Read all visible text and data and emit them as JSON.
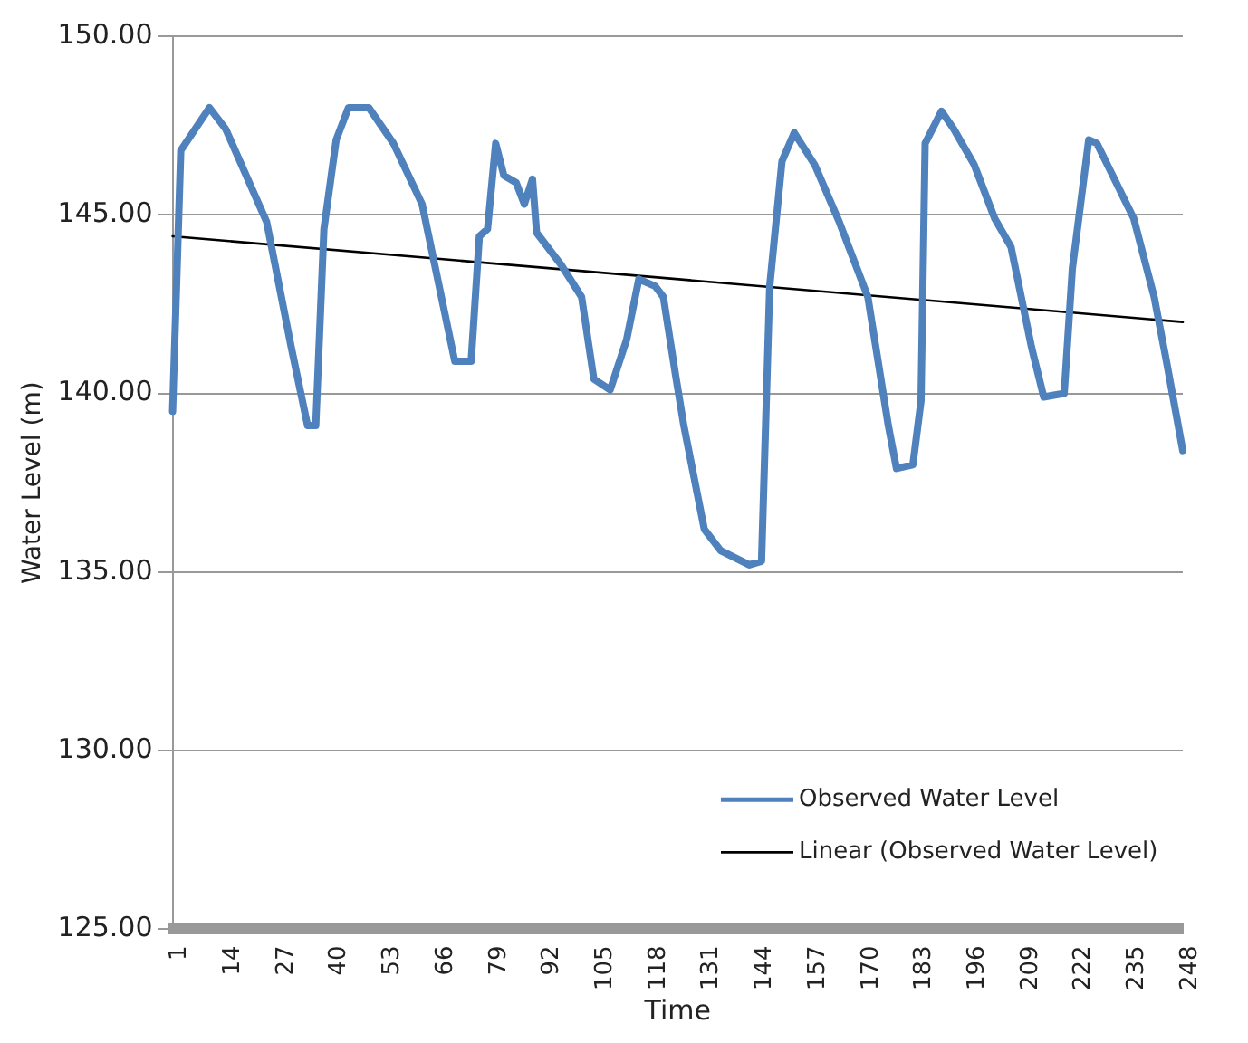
{
  "chart_data": {
    "type": "line",
    "xlabel": "Time",
    "ylabel": "Water Level (m)",
    "xlim": [
      1,
      248
    ],
    "xticks": [
      1,
      14,
      27,
      40,
      53,
      66,
      79,
      92,
      105,
      118,
      131,
      144,
      157,
      170,
      183,
      196,
      209,
      222,
      235,
      248
    ],
    "ylim": [
      125,
      150
    ],
    "yticks": [
      {
        "value": 125,
        "label": "125.00"
      },
      {
        "value": 130,
        "label": "130.00"
      },
      {
        "value": 135,
        "label": "135.00"
      },
      {
        "value": 140,
        "label": "140.00"
      },
      {
        "value": 145,
        "label": "145.00"
      },
      {
        "value": 150,
        "label": "150.00"
      }
    ],
    "grid": "y",
    "legend": "bottom right",
    "marker": "none",
    "line_style": "solid",
    "series": [
      {
        "name": "Observed Water Level",
        "color": "#4f81bd",
        "x": [
          1,
          3,
          10,
          14,
          24,
          30,
          34,
          36,
          38,
          41,
          44,
          49,
          55,
          62,
          70,
          74,
          76,
          78,
          80,
          82,
          85,
          87,
          89,
          90,
          96,
          101,
          104,
          108,
          112,
          115,
          119,
          121,
          124,
          126,
          131,
          135,
          142,
          145,
          147,
          150,
          153,
          158,
          164,
          171,
          176,
          178,
          182,
          184,
          185,
          189,
          192,
          197,
          202,
          206,
          211,
          214,
          219,
          221,
          225,
          227,
          230,
          236,
          241,
          244,
          248
        ],
        "values": [
          139.5,
          146.8,
          148.0,
          147.4,
          144.8,
          141.3,
          139.1,
          139.1,
          144.6,
          147.1,
          148.0,
          148.0,
          147.0,
          145.3,
          140.9,
          140.9,
          144.4,
          144.6,
          147.0,
          146.1,
          145.9,
          145.3,
          146.0,
          144.5,
          143.6,
          142.7,
          140.4,
          140.1,
          141.5,
          143.2,
          143.0,
          142.7,
          140.5,
          139.1,
          136.2,
          135.6,
          135.2,
          135.3,
          143.0,
          146.5,
          147.3,
          146.4,
          144.8,
          142.7,
          139.1,
          137.9,
          138.0,
          139.8,
          147.0,
          147.9,
          147.4,
          146.4,
          144.9,
          144.1,
          141.3,
          139.9,
          140.0,
          143.5,
          147.1,
          147.0,
          146.3,
          144.9,
          142.7,
          140.9,
          138.4
        ]
      },
      {
        "name": "Linear (Observed Water Level)",
        "color": "#000000",
        "type": "line",
        "x": [
          1,
          248
        ],
        "values": [
          144.4,
          142.0
        ]
      }
    ]
  }
}
